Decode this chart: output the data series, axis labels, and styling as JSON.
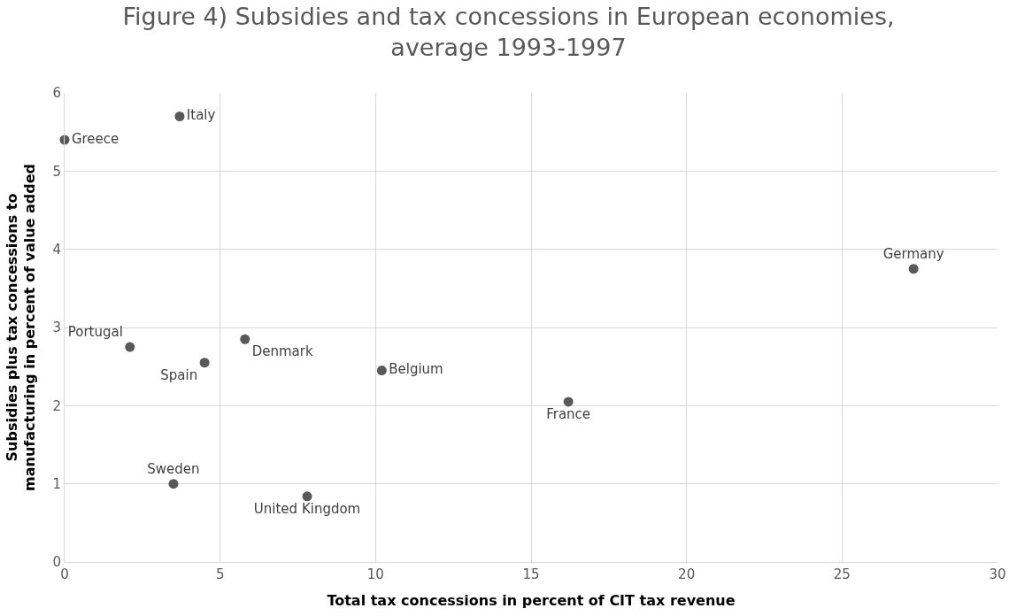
{
  "chart_data": {
    "type": "scatter",
    "title": "Figure 4) Subsidies and tax concessions in European economies, average 1993-1997",
    "xlabel": "Total tax concessions in percent of CIT tax revenue",
    "ylabel": "Subsidies plus tax concessions to manufacturing in percent of value added",
    "series": [
      {
        "name": "Greece",
        "color": "#595959",
        "x": [
          0
        ],
        "values": [
          5.4
        ]
      },
      {
        "name": "Italy",
        "color": "#595959",
        "x": [
          3.7
        ],
        "values": [
          5.7
        ]
      },
      {
        "name": "Germany",
        "color": "#595959",
        "x": [
          27.3
        ],
        "values": [
          3.75
        ]
      },
      {
        "name": "Portugal",
        "color": "#595959",
        "x": [
          2.1
        ],
        "values": [
          2.75
        ]
      },
      {
        "name": "Spain",
        "color": "#595959",
        "x": [
          4.5
        ],
        "values": [
          2.55
        ]
      },
      {
        "name": "Denmark",
        "color": "#595959",
        "x": [
          5.8
        ],
        "values": [
          2.85
        ]
      },
      {
        "name": "Belgium",
        "color": "#595959",
        "x": [
          10.2
        ],
        "values": [
          2.45
        ]
      },
      {
        "name": "France",
        "color": "#595959",
        "x": [
          16.2
        ],
        "values": [
          2.05
        ]
      },
      {
        "name": "Sweden",
        "color": "#595959",
        "x": [
          3.5
        ],
        "values": [
          1.0
        ]
      },
      {
        "name": "United Kingdom",
        "color": "#595959",
        "x": [
          7.8
        ],
        "values": [
          0.84
        ]
      }
    ],
    "xlim": [
      0,
      30
    ],
    "xticks": [
      0,
      5,
      10,
      15,
      20,
      25,
      30
    ],
    "ylim": [
      0,
      6
    ],
    "yticks": [
      0,
      1,
      2,
      3,
      4,
      5,
      6
    ],
    "grid": true,
    "legend": false,
    "marker": "circle"
  }
}
